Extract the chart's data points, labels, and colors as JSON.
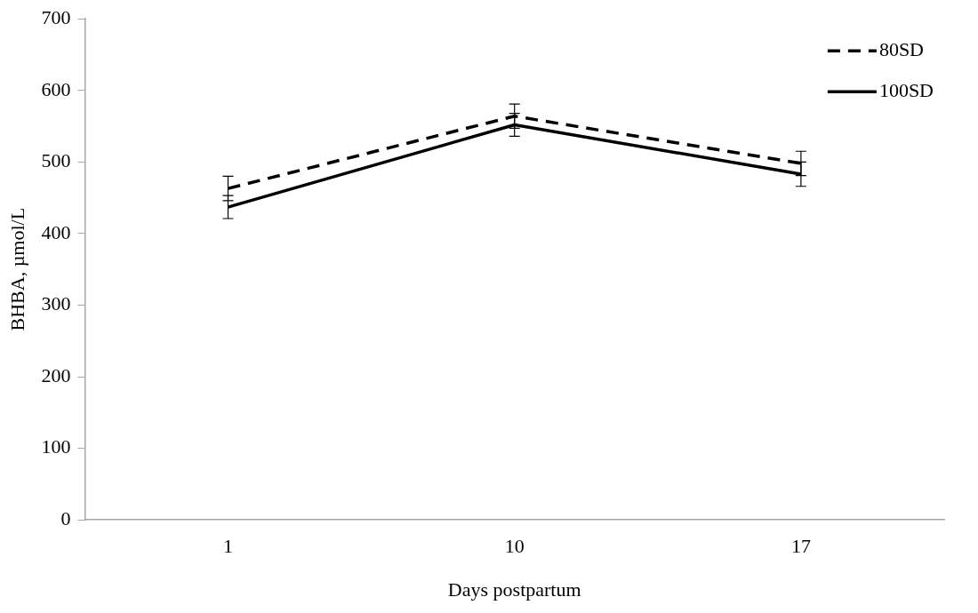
{
  "chart_data": {
    "type": "line",
    "xlabel": "Days postpartum",
    "ylabel": "BHBA, µmol/L",
    "categories": [
      "1",
      "10",
      "17"
    ],
    "series": [
      {
        "name": "80SD",
        "color": "#000000",
        "line_style": "dashed",
        "values": [
          463,
          564,
          498
        ],
        "errors": [
          17,
          17,
          17
        ]
      },
      {
        "name": "100SD",
        "color": "#000000",
        "line_style": "solid",
        "values": [
          437,
          552,
          483
        ],
        "errors": [
          16,
          16,
          17
        ]
      }
    ],
    "ylim": [
      0,
      700
    ],
    "yticks": [
      0,
      100,
      200,
      300,
      400,
      500,
      600,
      700
    ],
    "grid": false,
    "legend": "top right",
    "marker": "none"
  }
}
